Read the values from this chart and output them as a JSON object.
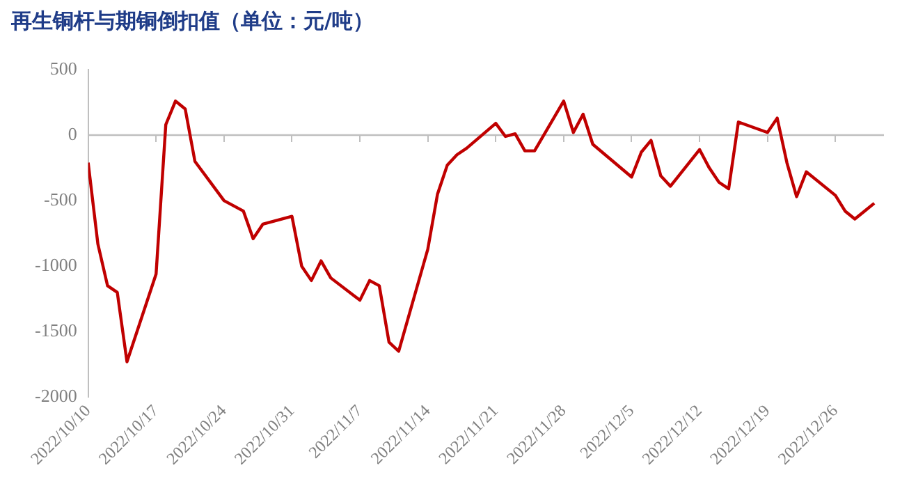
{
  "chart_data": {
    "type": "line",
    "title": "再生铜杆与期铜倒扣值（单位：元/吨）",
    "x": [
      "2022-10-10",
      "2022-10-11",
      "2022-10-12",
      "2022-10-13",
      "2022-10-14",
      "2022-10-17",
      "2022-10-18",
      "2022-10-19",
      "2022-10-20",
      "2022-10-21",
      "2022-10-24",
      "2022-10-26",
      "2022-10-27",
      "2022-10-28",
      "2022-10-31",
      "2022-11-01",
      "2022-11-02",
      "2022-11-03",
      "2022-11-04",
      "2022-11-07",
      "2022-11-08",
      "2022-11-09",
      "2022-11-10",
      "2022-11-11",
      "2022-11-14",
      "2022-11-15",
      "2022-11-16",
      "2022-11-17",
      "2022-11-18",
      "2022-11-21",
      "2022-11-22",
      "2022-11-23",
      "2022-11-24",
      "2022-11-25",
      "2022-11-28",
      "2022-11-29",
      "2022-11-30",
      "2022-12-01",
      "2022-12-05",
      "2022-12-06",
      "2022-12-07",
      "2022-12-08",
      "2022-12-09",
      "2022-12-12",
      "2022-12-13",
      "2022-12-14",
      "2022-12-15",
      "2022-12-16",
      "2022-12-19",
      "2022-12-20",
      "2022-12-21",
      "2022-12-22",
      "2022-12-23",
      "2022-12-26",
      "2022-12-27",
      "2022-12-28",
      "2022-12-29",
      "2022-12-30"
    ],
    "series": [
      {
        "color": "#c00000",
        "values": [
          -210,
          -830,
          -1150,
          -1200,
          -1730,
          -1060,
          80,
          260,
          200,
          -200,
          -500,
          -580,
          -790,
          -680,
          -620,
          -1000,
          -1110,
          -960,
          -1090,
          -1260,
          -1110,
          -1150,
          -1580,
          -1650,
          -870,
          -450,
          -230,
          -150,
          -100,
          90,
          -10,
          10,
          -120,
          -120,
          260,
          20,
          160,
          -70,
          -320,
          -130,
          -40,
          -310,
          -390,
          -110,
          -250,
          -360,
          -410,
          100,
          20,
          130,
          -210,
          -470,
          -280,
          -460,
          -580,
          -640,
          -580,
          -520
        ]
      }
    ],
    "xlim": [
      "2022-10-10",
      "2022-12-31"
    ],
    "xticks": [
      {
        "value": "2022-10-10",
        "label": "2022/10/10"
      },
      {
        "value": "2022-10-17",
        "label": "2022/10/17"
      },
      {
        "value": "2022-10-24",
        "label": "2022/10/24"
      },
      {
        "value": "2022-10-31",
        "label": "2022/10/31"
      },
      {
        "value": "2022-11-07",
        "label": "2022/11/7"
      },
      {
        "value": "2022-11-14",
        "label": "2022/11/14"
      },
      {
        "value": "2022-11-21",
        "label": "2022/11/21"
      },
      {
        "value": "2022-11-28",
        "label": "2022/11/28"
      },
      {
        "value": "2022-12-05",
        "label": "2022/12/5"
      },
      {
        "value": "2022-12-12",
        "label": "2022/12/12"
      },
      {
        "value": "2022-12-19",
        "label": "2022/12/19"
      },
      {
        "value": "2022-12-26",
        "label": "2022/12/26"
      }
    ],
    "ylim": [
      -2000,
      500
    ],
    "yticks": [
      -2000,
      -1500,
      -1000,
      -500,
      0,
      500
    ],
    "ref_lines": [
      {
        "axis": "y",
        "value": 0,
        "color": "#bfbfbf",
        "line_style": "solid"
      }
    ],
    "grid": false,
    "legend": false,
    "marker": "none",
    "line_style": "solid"
  }
}
